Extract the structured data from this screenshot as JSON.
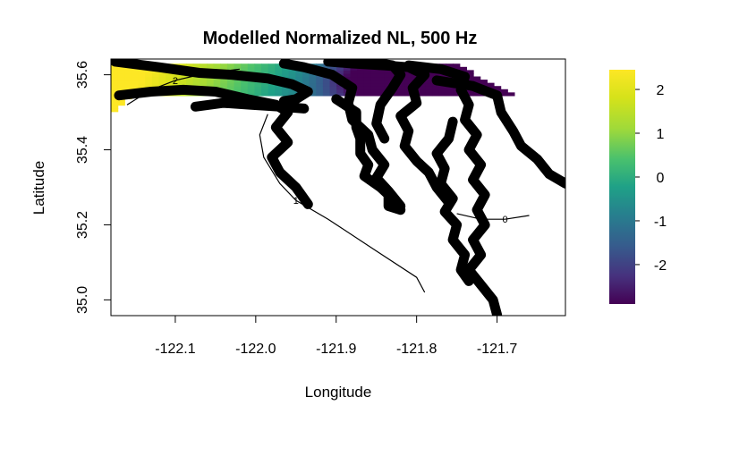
{
  "chart_data": {
    "type": "heatmap",
    "title": "Modelled Normalized NL, 500 Hz",
    "xlabel": "Longitude",
    "ylabel": "Latitude",
    "xlim": [
      -122.18,
      -121.615
    ],
    "ylim": [
      34.958,
      35.642
    ],
    "x_ticks": [
      -122.1,
      -122.0,
      -121.9,
      -121.8,
      -121.7
    ],
    "x_tick_labels": [
      "-122.1",
      "-122.0",
      "-121.9",
      "-121.8",
      "-121.7"
    ],
    "y_ticks": [
      35.0,
      35.2,
      35.4,
      35.6
    ],
    "y_tick_labels": [
      "35.0",
      "35.2",
      "35.4",
      "35.6"
    ],
    "grid": false,
    "colorbar": {
      "palette": "viridis",
      "range": [
        -2.9,
        2.45
      ],
      "ticks": [
        -2,
        -1,
        0,
        1,
        2
      ],
      "tick_labels": [
        "-2",
        "-1",
        "0",
        "1",
        "2"
      ]
    },
    "contours": [
      {
        "level": 2,
        "label": "2",
        "points": [
          [
            -122.16,
            35.52
          ],
          [
            -122.13,
            35.56
          ],
          [
            -122.1,
            35.585
          ],
          [
            -122.06,
            35.605
          ],
          [
            -122.02,
            35.615
          ]
        ]
      },
      {
        "level": 1,
        "label": "1",
        "points": [
          [
            -121.985,
            35.495
          ],
          [
            -121.995,
            35.44
          ],
          [
            -121.99,
            35.38
          ],
          [
            -121.97,
            35.31
          ],
          [
            -121.95,
            35.265
          ],
          [
            -121.91,
            35.215
          ],
          [
            -121.85,
            35.13
          ],
          [
            -121.8,
            35.06
          ],
          [
            -121.79,
            35.02
          ]
        ]
      },
      {
        "level": 0,
        "label": "0",
        "points": [
          [
            -121.75,
            35.23
          ],
          [
            -121.72,
            35.215
          ],
          [
            -121.69,
            35.215
          ],
          [
            -121.66,
            35.225
          ]
        ]
      }
    ],
    "tracks": [
      {
        "points": [
          [
            -122.175,
            35.635
          ],
          [
            -122.12,
            35.62
          ],
          [
            -122.07,
            35.605
          ],
          [
            -122.03,
            35.6
          ],
          [
            -121.985,
            35.59
          ],
          [
            -121.955,
            35.575
          ],
          [
            -121.935,
            35.555
          ],
          [
            -121.95,
            35.535
          ],
          [
            -121.965,
            35.53
          ]
        ]
      },
      {
        "points": [
          [
            -122.17,
            35.545
          ],
          [
            -122.13,
            35.555
          ],
          [
            -122.09,
            35.56
          ],
          [
            -122.05,
            35.555
          ],
          [
            -122.01,
            35.535
          ],
          [
            -121.975,
            35.52
          ],
          [
            -121.96,
            35.5
          ],
          [
            -121.975,
            35.46
          ],
          [
            -121.96,
            35.42
          ],
          [
            -121.98,
            35.38
          ],
          [
            -121.97,
            35.34
          ],
          [
            -121.95,
            35.3
          ],
          [
            -121.935,
            35.255
          ]
        ]
      },
      {
        "points": [
          [
            -122.075,
            35.515
          ],
          [
            -122.04,
            35.525
          ],
          [
            -122.005,
            35.52
          ],
          [
            -121.97,
            35.515
          ],
          [
            -121.94,
            35.51
          ]
        ]
      },
      {
        "points": [
          [
            -121.965,
            35.63
          ],
          [
            -121.94,
            35.62
          ],
          [
            -121.905,
            35.6
          ],
          [
            -121.88,
            35.565
          ],
          [
            -121.885,
            35.525
          ],
          [
            -121.88,
            35.48
          ],
          [
            -121.86,
            35.44
          ],
          [
            -121.855,
            35.4
          ],
          [
            -121.84,
            35.36
          ],
          [
            -121.85,
            35.325
          ],
          [
            -121.835,
            35.29
          ],
          [
            -121.82,
            35.25
          ]
        ]
      },
      {
        "points": [
          [
            -121.91,
            35.635
          ],
          [
            -121.88,
            35.63
          ],
          [
            -121.84,
            35.625
          ],
          [
            -121.81,
            35.62
          ],
          [
            -121.79,
            35.6
          ],
          [
            -121.805,
            35.565
          ],
          [
            -121.8,
            35.525
          ],
          [
            -121.82,
            35.49
          ],
          [
            -121.81,
            35.45
          ],
          [
            -121.815,
            35.41
          ],
          [
            -121.8,
            35.37
          ],
          [
            -121.785,
            35.34
          ],
          [
            -121.775,
            35.3
          ],
          [
            -121.76,
            35.26
          ]
        ]
      },
      {
        "points": [
          [
            -121.86,
            35.635
          ],
          [
            -121.83,
            35.625
          ],
          [
            -121.82,
            35.6
          ],
          [
            -121.83,
            35.565
          ],
          [
            -121.845,
            35.52
          ],
          [
            -121.85,
            35.47
          ],
          [
            -121.84,
            35.43
          ]
        ]
      },
      {
        "points": [
          [
            -121.81,
            35.625
          ],
          [
            -121.77,
            35.615
          ],
          [
            -121.74,
            35.595
          ],
          [
            -121.745,
            35.56
          ],
          [
            -121.735,
            35.52
          ],
          [
            -121.74,
            35.48
          ],
          [
            -121.725,
            35.44
          ],
          [
            -121.735,
            35.4
          ],
          [
            -121.72,
            35.36
          ],
          [
            -121.73,
            35.32
          ],
          [
            -121.715,
            35.28
          ],
          [
            -121.725,
            35.24
          ],
          [
            -121.715,
            35.2
          ],
          [
            -121.73,
            35.16
          ],
          [
            -121.72,
            35.12
          ],
          [
            -121.735,
            35.08
          ],
          [
            -121.72,
            35.04
          ],
          [
            -121.705,
            35.0
          ],
          [
            -121.7,
            34.96
          ]
        ]
      },
      {
        "points": [
          [
            -121.775,
            35.585
          ],
          [
            -121.73,
            35.57
          ],
          [
            -121.7,
            35.545
          ],
          [
            -121.695,
            35.5
          ],
          [
            -121.68,
            35.45
          ],
          [
            -121.67,
            35.41
          ],
          [
            -121.65,
            35.375
          ],
          [
            -121.635,
            35.335
          ],
          [
            -121.615,
            35.31
          ]
        ]
      },
      {
        "points": [
          [
            -121.755,
            35.475
          ],
          [
            -121.76,
            35.43
          ],
          [
            -121.775,
            35.39
          ],
          [
            -121.765,
            35.35
          ],
          [
            -121.77,
            35.31
          ],
          [
            -121.755,
            35.27
          ],
          [
            -121.765,
            35.235
          ],
          [
            -121.75,
            35.2
          ],
          [
            -121.755,
            35.16
          ],
          [
            -121.74,
            35.12
          ],
          [
            -121.745,
            35.08
          ],
          [
            -121.735,
            35.05
          ]
        ]
      },
      {
        "points": [
          [
            -121.9,
            35.535
          ],
          [
            -121.875,
            35.5
          ],
          [
            -121.875,
            35.46
          ],
          [
            -121.87,
            35.43
          ],
          [
            -121.87,
            35.39
          ],
          [
            -121.86,
            35.36
          ],
          [
            -121.865,
            35.33
          ],
          [
            -121.845,
            35.3
          ],
          [
            -121.835,
            35.28
          ],
          [
            -121.835,
            35.25
          ],
          [
            -121.82,
            35.24
          ]
        ]
      }
    ]
  }
}
